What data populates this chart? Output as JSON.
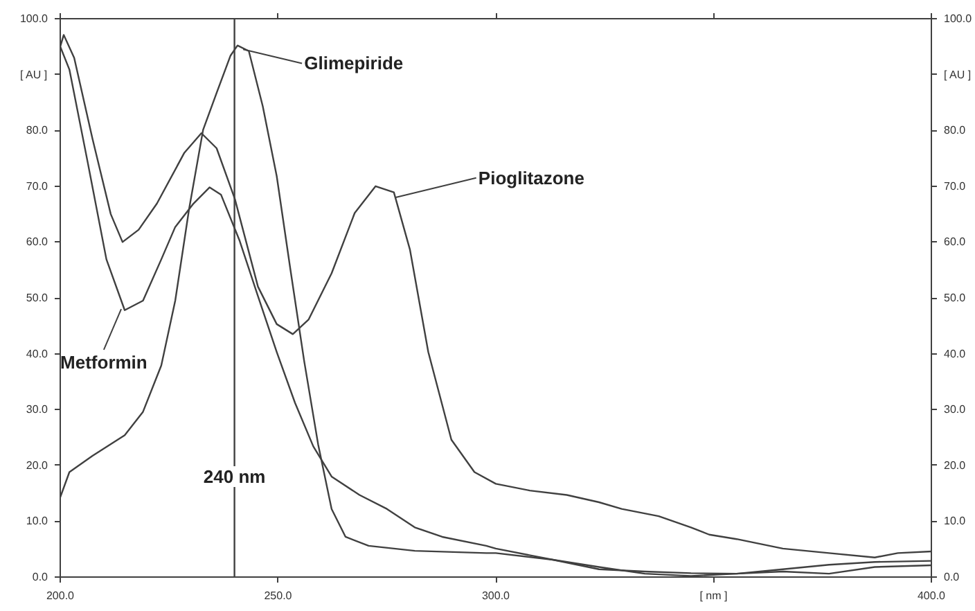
{
  "chart_data": {
    "type": "line",
    "line_style": "solid",
    "marker": "none",
    "grid": false,
    "xlim": [
      200,
      400
    ],
    "xticks": [
      {
        "value": 200,
        "label": "200.0"
      },
      {
        "value": 250,
        "label": "250.0"
      },
      {
        "value": 300,
        "label": "300.0"
      },
      {
        "value": 350,
        "label": "[ nm ]"
      },
      {
        "value": 400,
        "label": "400.0"
      }
    ],
    "ylim": [
      0,
      100
    ],
    "yticks": [
      {
        "value": 0,
        "label": "0.0"
      },
      {
        "value": 10,
        "label": "10.0"
      },
      {
        "value": 20,
        "label": "20.0"
      },
      {
        "value": 30,
        "label": "30.0"
      },
      {
        "value": 40,
        "label": "40.0"
      },
      {
        "value": 50,
        "label": "50.0"
      },
      {
        "value": 60,
        "label": "60.0"
      },
      {
        "value": 70,
        "label": "70.0"
      },
      {
        "value": 80,
        "label": "80.0"
      },
      {
        "value": 90,
        "label": "[ AU ]"
      },
      {
        "value": 100,
        "label": "100.0"
      }
    ],
    "y2lim": [
      0,
      100
    ],
    "y2ticks": [
      {
        "value": 0,
        "label": "0.0"
      },
      {
        "value": 10,
        "label": "10.0"
      },
      {
        "value": 20,
        "label": "20.0"
      },
      {
        "value": 30,
        "label": "30.0"
      },
      {
        "value": 40,
        "label": "40.0"
      },
      {
        "value": 50,
        "label": "50.0"
      },
      {
        "value": 60,
        "label": "60.0"
      },
      {
        "value": 70,
        "label": "70.0"
      },
      {
        "value": 80,
        "label": "80.0"
      },
      {
        "value": 90,
        "label": "[ AU ]"
      },
      {
        "value": 100,
        "label": "100.0"
      }
    ],
    "series": [
      {
        "color": "#404040",
        "x": [
          200,
          200.8,
          203.2,
          207.4,
          211.6,
          214.3,
          218,
          222.2,
          228.5,
          232.4,
          235.9,
          240.1,
          245.4,
          249.7,
          253.4,
          257,
          262.3,
          267.6,
          272.4,
          276.6,
          280.3,
          284.5,
          289.8,
          295.1,
          300,
          307.8,
          316.3,
          323.7,
          328.9,
          337.4,
          344.8,
          349,
          355.3,
          365.9,
          376.5,
          387,
          392.3,
          400
        ],
        "values": [
          95,
          97.1,
          93,
          78.5,
          65,
          60,
          62.2,
          66.9,
          76,
          79.5,
          76.8,
          67.7,
          52,
          45.3,
          43.5,
          46.1,
          54.4,
          65.2,
          70,
          68.9,
          58.6,
          40.3,
          24.6,
          18.8,
          16.7,
          15.5,
          14.7,
          13.4,
          12.2,
          10.9,
          8.9,
          7.6,
          6.8,
          5.1,
          4.3,
          3.5,
          4.3,
          4.6
        ]
      },
      {
        "color": "#404040",
        "x": [
          200,
          202.1,
          206.3,
          210.6,
          214.8,
          219,
          223.2,
          226.4,
          230.6,
          234.3,
          236.9,
          241.2,
          245.4,
          249.7,
          253.9,
          258.1,
          262.3,
          268.7,
          275,
          281.4,
          287.7,
          297.8,
          300,
          313.1,
          323.7,
          334.2,
          344.8,
          355.3,
          365.9,
          376.5,
          387,
          400
        ],
        "values": [
          95,
          90.9,
          74.3,
          56.9,
          47.8,
          49.5,
          56.9,
          62.7,
          66.9,
          69.8,
          68.5,
          60.2,
          50.3,
          40.3,
          31.2,
          23.4,
          18,
          14.7,
          12.2,
          8.9,
          7.2,
          5.6,
          5.1,
          3.1,
          1.4,
          1,
          0.7,
          0.6,
          1.4,
          2.2,
          2.7,
          2.9
        ]
      },
      {
        "color": "#404040",
        "x": [
          200,
          202.1,
          207.4,
          214.8,
          219,
          223.2,
          226.4,
          229.6,
          232.8,
          235.9,
          239.1,
          240.7,
          243.3,
          246.5,
          249.7,
          252.8,
          256,
          259.2,
          262.3,
          265.5,
          270.8,
          281.4,
          297.8,
          300,
          313.1,
          323.7,
          334.2,
          344.8,
          355.3,
          365.9,
          376.5,
          387,
          400
        ],
        "values": [
          14.3,
          18.8,
          21.7,
          25.4,
          29.6,
          37.9,
          49.5,
          66,
          80.1,
          86.7,
          93.4,
          95.2,
          94.2,
          84.3,
          71.8,
          55.3,
          38.7,
          23.8,
          12.2,
          7.2,
          5.6,
          4.7,
          4.3,
          4.3,
          3.1,
          1.8,
          0.6,
          0.2,
          0.6,
          1,
          0.6,
          1.8,
          2.1
        ]
      }
    ],
    "ref_lines": [
      {
        "axis": "x",
        "value": 240,
        "label": "240 nm",
        "color": "#404040"
      }
    ],
    "annotations": [
      {
        "text": "Glimepiride",
        "x": 242,
        "y": 94.5
      },
      {
        "text": "Pioglitazone",
        "x": 277,
        "y": 68
      },
      {
        "text": "Metformin",
        "x": 214,
        "y": 48
      }
    ]
  }
}
